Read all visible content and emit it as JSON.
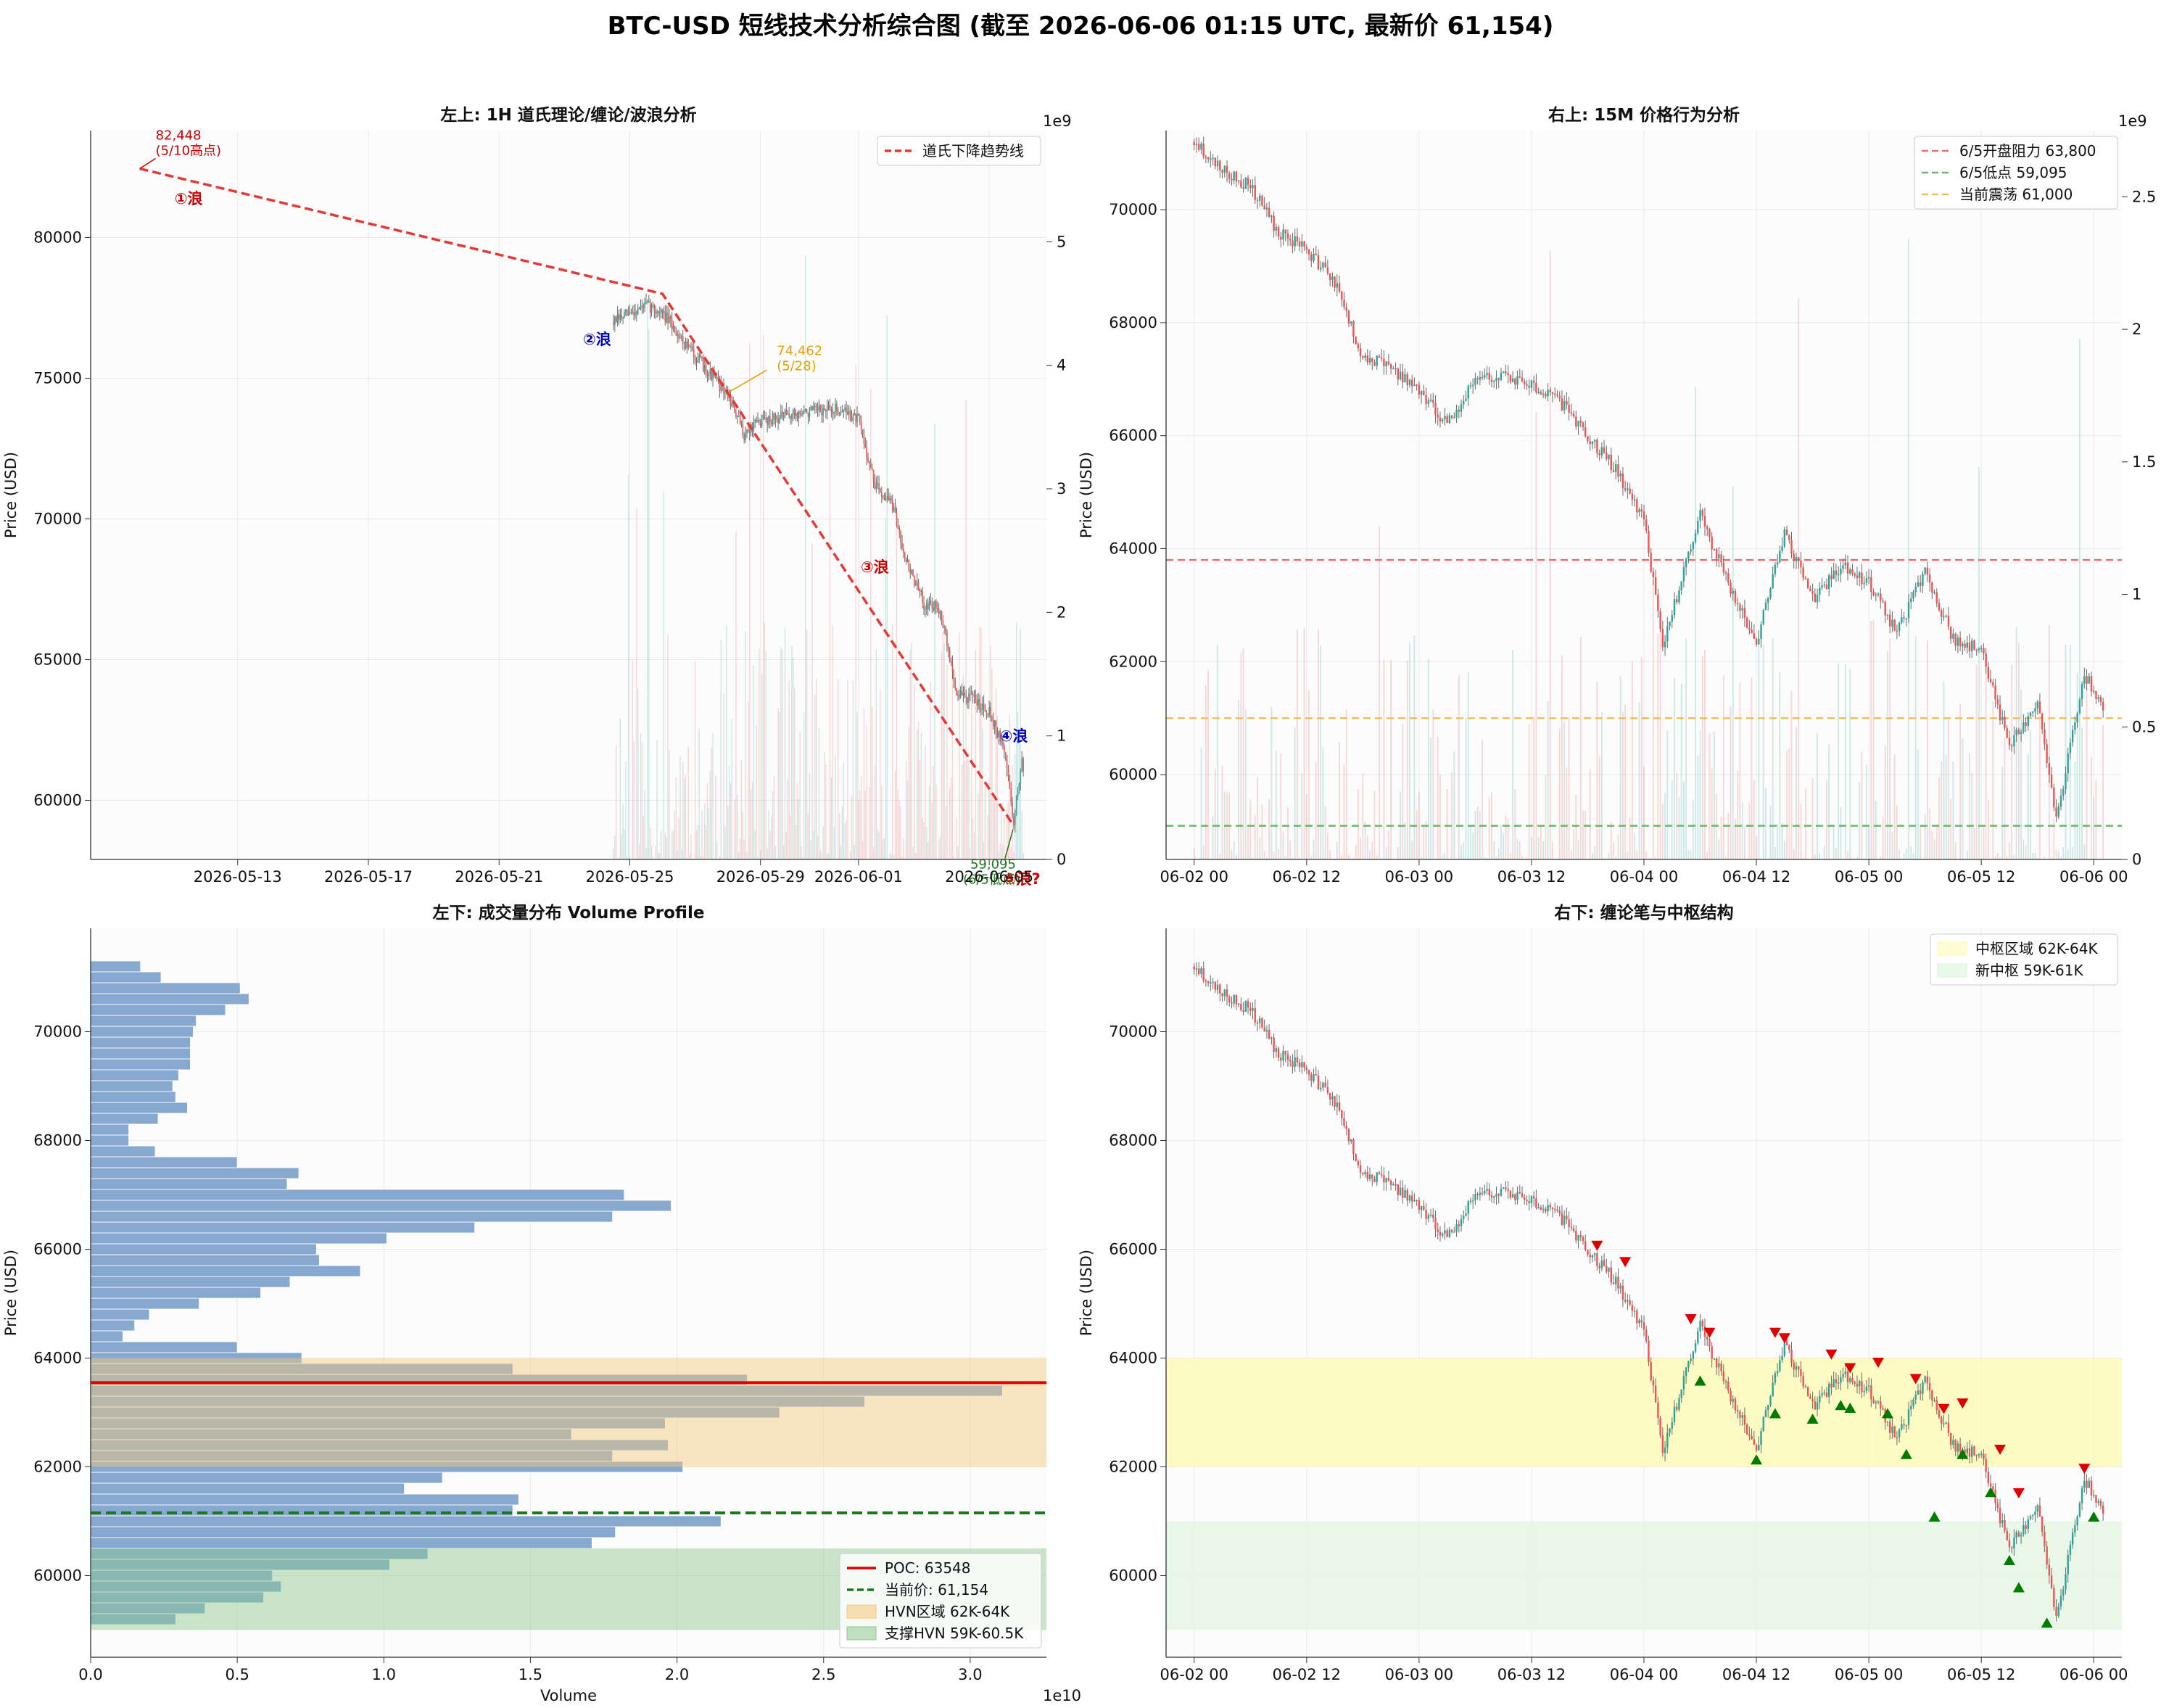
{
  "figure": {
    "title": "BTC-USD 短线技术分析综合图 (截至 2026-06-06 01:15 UTC, 最新价 61,154)"
  },
  "colors": {
    "up": "#26a69a",
    "down": "#ef5350",
    "trend": "#e53935",
    "volume_bar": "#88a9cf",
    "poc": "#e00000",
    "current": "#1a7a1a"
  },
  "chart_data": [
    {
      "id": "top_left",
      "type": "candlestick",
      "title": "左上: 1H 道氏理论/缠论/波浪分析",
      "xlabel": "",
      "ylabel": "Price (USD)",
      "ylim": [
        57900,
        83800
      ],
      "secondary_y_label": "1e9",
      "secondary_ylim": [
        0,
        5.9
      ],
      "x_range": [
        "2026-05-08T12:00",
        "2026-06-06T18:00"
      ],
      "x_ticks": [
        "2026-05-13",
        "2026-05-17",
        "2026-05-21",
        "2026-05-25",
        "2026-05-29",
        "2026-06-01",
        "2026-06-05"
      ],
      "y_ticks": [
        60000,
        65000,
        70000,
        75000,
        80000
      ],
      "secondary_y_ticks": [
        0,
        1,
        2,
        3,
        4,
        5
      ],
      "grid": true,
      "legend_position": "top-right",
      "legend": [
        {
          "label": "道氏下降趋势线",
          "style": "dashed",
          "color": "#e53935"
        }
      ],
      "trend_line": [
        {
          "t": "2026-05-10T00:00",
          "price": 82448
        },
        {
          "t": "2026-05-26T00:00",
          "price": 78000
        },
        {
          "t": "2026-06-05T18:00",
          "price": 59095
        }
      ],
      "price_path": [
        {
          "t": "2026-05-24T12:00",
          "price": 77000
        },
        {
          "t": "2026-05-25T12:00",
          "price": 77600
        },
        {
          "t": "2026-05-26T00:00",
          "price": 77300
        },
        {
          "t": "2026-05-27T00:00",
          "price": 75800
        },
        {
          "t": "2026-05-28T00:00",
          "price": 74400
        },
        {
          "t": "2026-05-28T12:00",
          "price": 73000
        },
        {
          "t": "2026-05-29T00:00",
          "price": 73500
        },
        {
          "t": "2026-05-30T12:00",
          "price": 73800
        },
        {
          "t": "2026-05-31T12:00",
          "price": 73900
        },
        {
          "t": "2026-06-01T00:00",
          "price": 73500
        },
        {
          "t": "2026-06-01T12:00",
          "price": 71200
        },
        {
          "t": "2026-06-02T00:00",
          "price": 70600
        },
        {
          "t": "2026-06-02T12:00",
          "price": 68400
        },
        {
          "t": "2026-06-03T00:00",
          "price": 67000
        },
        {
          "t": "2026-06-03T12:00",
          "price": 66800
        },
        {
          "t": "2026-06-04T00:00",
          "price": 63800
        },
        {
          "t": "2026-06-04T12:00",
          "price": 63600
        },
        {
          "t": "2026-06-05T00:00",
          "price": 63200
        },
        {
          "t": "2026-06-05T12:00",
          "price": 61600
        },
        {
          "t": "2026-06-05T18:00",
          "price": 59200
        },
        {
          "t": "2026-06-06T00:00",
          "price": 61500
        },
        {
          "t": "2026-06-06T01:00",
          "price": 61154
        }
      ],
      "annotations": [
        {
          "text": "82,448",
          "sub": "(5/10高点)",
          "t": "2026-05-10T00:00",
          "price": 82448,
          "color": "#cc0000",
          "arrow": true
        },
        {
          "text": "①浪",
          "t": "2026-05-11T12:00",
          "price": 81200,
          "color": "#cc0000"
        },
        {
          "text": "②浪",
          "t": "2026-05-24T00:00",
          "price": 76200,
          "color": "#0000bb"
        },
        {
          "text": "74,462",
          "sub": "(5/28)",
          "t": "2026-05-29T12:00",
          "price": 75700,
          "color": "#e6a000",
          "arrow": true
        },
        {
          "text": "③浪",
          "t": "2026-06-01T12:00",
          "price": 68100,
          "color": "#cc0000"
        },
        {
          "text": "④浪",
          "t": "2026-06-05T18:00",
          "price": 62100,
          "color": "#0000bb"
        },
        {
          "text": "59,095",
          "sub": "(6/5低点)",
          "t": "2026-06-04T12:00",
          "price": 57000,
          "color": "#1a7a1a",
          "arrow": true
        },
        {
          "text": "⑤浪?",
          "t": "2026-06-06T00:00",
          "price": 57000,
          "color": "#cc0000"
        }
      ]
    },
    {
      "id": "top_right",
      "type": "candlestick",
      "title": "右上: 15M 价格行为分析",
      "xlabel": "",
      "ylabel": "Price (USD)",
      "ylim": [
        58500,
        71400
      ],
      "secondary_y_label": "1e9",
      "secondary_ylim": [
        0,
        2.75
      ],
      "x_range": [
        "2026-06-01T21:00",
        "2026-06-06T03:00"
      ],
      "x_ticks": [
        "06-02 00",
        "06-02 12",
        "06-03 00",
        "06-03 12",
        "06-04 00",
        "06-04 12",
        "06-05 00",
        "06-05 12",
        "06-06 00"
      ],
      "y_ticks": [
        60000,
        62000,
        64000,
        66000,
        68000,
        70000
      ],
      "secondary_y_ticks": [
        0,
        0.5,
        1.0,
        1.5,
        2.0,
        2.5
      ],
      "grid": true,
      "legend_position": "top-right",
      "legend": [
        {
          "label": "6/5开盘阻力 63,800",
          "style": "dashed",
          "color": "#e57373",
          "value": 63800
        },
        {
          "label": "6/5低点 59,095",
          "style": "dashed",
          "color": "#66bb6a",
          "value": 59095
        },
        {
          "label": "当前震荡 61,000",
          "style": "dashed",
          "color": "#f0c060",
          "value": 61000
        }
      ],
      "price_path": [
        {
          "t": "2026-06-02T00:00",
          "price": 71200
        },
        {
          "t": "2026-06-02T03:00",
          "price": 70700
        },
        {
          "t": "2026-06-02T06:00",
          "price": 70400
        },
        {
          "t": "2026-06-02T09:00",
          "price": 69600
        },
        {
          "t": "2026-06-02T12:00",
          "price": 69300
        },
        {
          "t": "2026-06-02T15:00",
          "price": 68700
        },
        {
          "t": "2026-06-02T18:00",
          "price": 67400
        },
        {
          "t": "2026-06-02T21:00",
          "price": 67200
        },
        {
          "t": "2026-06-03T00:00",
          "price": 66800
        },
        {
          "t": "2026-06-03T03:00",
          "price": 66200
        },
        {
          "t": "2026-06-03T06:00",
          "price": 67000
        },
        {
          "t": "2026-06-03T09:00",
          "price": 67100
        },
        {
          "t": "2026-06-03T12:00",
          "price": 66900
        },
        {
          "t": "2026-06-03T15:00",
          "price": 66600
        },
        {
          "t": "2026-06-03T18:00",
          "price": 66000
        },
        {
          "t": "2026-06-03T21:00",
          "price": 65400
        },
        {
          "t": "2026-06-04T00:00",
          "price": 64500
        },
        {
          "t": "2026-06-04T02:00",
          "price": 62300
        },
        {
          "t": "2026-06-04T06:00",
          "price": 64600
        },
        {
          "t": "2026-06-04T09:00",
          "price": 63400
        },
        {
          "t": "2026-06-04T12:00",
          "price": 62300
        },
        {
          "t": "2026-06-04T15:00",
          "price": 64300
        },
        {
          "t": "2026-06-04T18:00",
          "price": 63100
        },
        {
          "t": "2026-06-04T21:00",
          "price": 63700
        },
        {
          "t": "2026-06-05T00:00",
          "price": 63400
        },
        {
          "t": "2026-06-05T03:00",
          "price": 62500
        },
        {
          "t": "2026-06-05T06:00",
          "price": 63600
        },
        {
          "t": "2026-06-05T09:00",
          "price": 62400
        },
        {
          "t": "2026-06-05T12:00",
          "price": 62200
        },
        {
          "t": "2026-06-05T15:00",
          "price": 60500
        },
        {
          "t": "2026-06-05T18:00",
          "price": 61300
        },
        {
          "t": "2026-06-05T20:00",
          "price": 59200
        },
        {
          "t": "2026-06-05T23:00",
          "price": 61800
        },
        {
          "t": "2026-06-06T01:00",
          "price": 61154
        }
      ]
    },
    {
      "id": "bottom_left",
      "type": "volume_profile",
      "title": "左下: 成交量分布 Volume Profile",
      "xlabel": "Volume",
      "ylabel": "Price (USD)",
      "xlim": [
        0,
        3.26
      ],
      "x_scale_label": "1e10",
      "ylim": [
        58500,
        71900
      ],
      "x_ticks": [
        0.0,
        0.5,
        1.0,
        1.5,
        2.0,
        2.5,
        3.0
      ],
      "y_ticks": [
        60000,
        62000,
        64000,
        66000,
        68000,
        70000
      ],
      "grid": true,
      "legend_position": "bottom-right",
      "legend": [
        {
          "label": "POC: 63548",
          "style": "solid",
          "color": "#e00000"
        },
        {
          "label": "当前价: 61,154",
          "style": "dashed",
          "color": "#1a7a1a"
        },
        {
          "label": "HVN区域 62K-64K",
          "style": "patch",
          "color": "#f5c77a"
        },
        {
          "label": "支撑HVN 59K-60.5K",
          "style": "patch",
          "color": "#8cc78c"
        }
      ],
      "poc": 63548,
      "current_price": 61154,
      "bins": [
        {
          "price": 59200,
          "volume": 0.29
        },
        {
          "price": 59400,
          "volume": 0.39
        },
        {
          "price": 59600,
          "volume": 0.59
        },
        {
          "price": 59800,
          "volume": 0.65
        },
        {
          "price": 60000,
          "volume": 0.62
        },
        {
          "price": 60200,
          "volume": 1.02
        },
        {
          "price": 60400,
          "volume": 1.15
        },
        {
          "price": 60600,
          "volume": 1.71
        },
        {
          "price": 60800,
          "volume": 1.79
        },
        {
          "price": 61000,
          "volume": 2.15
        },
        {
          "price": 61200,
          "volume": 1.44
        },
        {
          "price": 61400,
          "volume": 1.46
        },
        {
          "price": 61600,
          "volume": 1.07
        },
        {
          "price": 61800,
          "volume": 1.2
        },
        {
          "price": 62000,
          "volume": 2.02
        },
        {
          "price": 62200,
          "volume": 1.78
        },
        {
          "price": 62400,
          "volume": 1.97
        },
        {
          "price": 62600,
          "volume": 1.64
        },
        {
          "price": 62800,
          "volume": 1.96
        },
        {
          "price": 63000,
          "volume": 2.35
        },
        {
          "price": 63200,
          "volume": 2.64
        },
        {
          "price": 63400,
          "volume": 3.11
        },
        {
          "price": 63600,
          "volume": 2.24
        },
        {
          "price": 63800,
          "volume": 1.44
        },
        {
          "price": 64000,
          "volume": 0.72
        },
        {
          "price": 64200,
          "volume": 0.5
        },
        {
          "price": 64400,
          "volume": 0.11
        },
        {
          "price": 64600,
          "volume": 0.15
        },
        {
          "price": 64800,
          "volume": 0.2
        },
        {
          "price": 65000,
          "volume": 0.37
        },
        {
          "price": 65200,
          "volume": 0.58
        },
        {
          "price": 65400,
          "volume": 0.68
        },
        {
          "price": 65600,
          "volume": 0.92
        },
        {
          "price": 65800,
          "volume": 0.78
        },
        {
          "price": 66000,
          "volume": 0.77
        },
        {
          "price": 66200,
          "volume": 1.01
        },
        {
          "price": 66400,
          "volume": 1.31
        },
        {
          "price": 66600,
          "volume": 1.78
        },
        {
          "price": 66800,
          "volume": 1.98
        },
        {
          "price": 67000,
          "volume": 1.82
        },
        {
          "price": 67200,
          "volume": 0.67
        },
        {
          "price": 67400,
          "volume": 0.71
        },
        {
          "price": 67600,
          "volume": 0.5
        },
        {
          "price": 67800,
          "volume": 0.22
        },
        {
          "price": 68000,
          "volume": 0.13
        },
        {
          "price": 68200,
          "volume": 0.13
        },
        {
          "price": 68400,
          "volume": 0.23
        },
        {
          "price": 68600,
          "volume": 0.33
        },
        {
          "price": 68800,
          "volume": 0.29
        },
        {
          "price": 69000,
          "volume": 0.28
        },
        {
          "price": 69200,
          "volume": 0.3
        },
        {
          "price": 69400,
          "volume": 0.34
        },
        {
          "price": 69600,
          "volume": 0.34
        },
        {
          "price": 69800,
          "volume": 0.34
        },
        {
          "price": 70000,
          "volume": 0.35
        },
        {
          "price": 70200,
          "volume": 0.36
        },
        {
          "price": 70400,
          "volume": 0.46
        },
        {
          "price": 70600,
          "volume": 0.54
        },
        {
          "price": 70800,
          "volume": 0.51
        },
        {
          "price": 71000,
          "volume": 0.24
        },
        {
          "price": 71200,
          "volume": 0.17
        }
      ],
      "bands": [
        {
          "from": 62000,
          "to": 64000,
          "color": "#f5c77a"
        },
        {
          "from": 59000,
          "to": 60500,
          "color": "#8cc78c"
        }
      ]
    },
    {
      "id": "bottom_right",
      "type": "candlestick",
      "title": "右下: 缠论笔与中枢结构",
      "xlabel": "",
      "ylabel": "Price (USD)",
      "ylim": [
        58500,
        71900
      ],
      "x_range": [
        "2026-06-01T21:00",
        "2026-06-06T03:00"
      ],
      "x_ticks": [
        "06-02 00",
        "06-02 12",
        "06-03 00",
        "06-03 12",
        "06-04 00",
        "06-04 12",
        "06-05 00",
        "06-05 12",
        "06-06 00"
      ],
      "y_ticks": [
        60000,
        62000,
        64000,
        66000,
        68000,
        70000
      ],
      "grid": true,
      "legend_position": "top-right",
      "legend": [
        {
          "label": "中枢区域 62K-64K",
          "style": "patch",
          "color": "#fff9b0"
        },
        {
          "label": "新中枢 59K-61K",
          "style": "patch",
          "color": "#d8f2d8"
        }
      ],
      "bands": [
        {
          "from": 62000,
          "to": 64000,
          "color": "#fff9b0"
        },
        {
          "from": 59000,
          "to": 61000,
          "color": "#e3f5e3"
        }
      ],
      "top_fractals": [
        {
          "t": "2026-06-03T19:00",
          "price": 66050
        },
        {
          "t": "2026-06-03T22:00",
          "price": 65750
        },
        {
          "t": "2026-06-04T05:00",
          "price": 64700
        },
        {
          "t": "2026-06-04T07:00",
          "price": 64450
        },
        {
          "t": "2026-06-04T14:00",
          "price": 64450
        },
        {
          "t": "2026-06-04T15:00",
          "price": 64350
        },
        {
          "t": "2026-06-04T20:00",
          "price": 64050
        },
        {
          "t": "2026-06-04T22:00",
          "price": 63800
        },
        {
          "t": "2026-06-05T01:00",
          "price": 63900
        },
        {
          "t": "2026-06-05T05:00",
          "price": 63600
        },
        {
          "t": "2026-06-05T08:00",
          "price": 63050
        },
        {
          "t": "2026-06-05T10:00",
          "price": 63150
        },
        {
          "t": "2026-06-05T14:00",
          "price": 62300
        },
        {
          "t": "2026-06-05T16:00",
          "price": 61500
        },
        {
          "t": "2026-06-05T23:00",
          "price": 61950
        }
      ],
      "bottom_fractals": [
        {
          "t": "2026-06-04T06:00",
          "price": 63600
        },
        {
          "t": "2026-06-04T12:00",
          "price": 62150
        },
        {
          "t": "2026-06-04T14:00",
          "price": 63000
        },
        {
          "t": "2026-06-04T18:00",
          "price": 62900
        },
        {
          "t": "2026-06-04T21:00",
          "price": 63150
        },
        {
          "t": "2026-06-04T22:00",
          "price": 63100
        },
        {
          "t": "2026-06-05T02:00",
          "price": 63000
        },
        {
          "t": "2026-06-05T04:00",
          "price": 62250
        },
        {
          "t": "2026-06-05T07:00",
          "price": 61100
        },
        {
          "t": "2026-06-05T10:00",
          "price": 62250
        },
        {
          "t": "2026-06-05T13:00",
          "price": 61550
        },
        {
          "t": "2026-06-05T15:00",
          "price": 60300
        },
        {
          "t": "2026-06-05T16:00",
          "price": 59800
        },
        {
          "t": "2026-06-05T19:00",
          "price": 59150
        },
        {
          "t": "2026-06-06T00:00",
          "price": 61100
        }
      ]
    }
  ]
}
